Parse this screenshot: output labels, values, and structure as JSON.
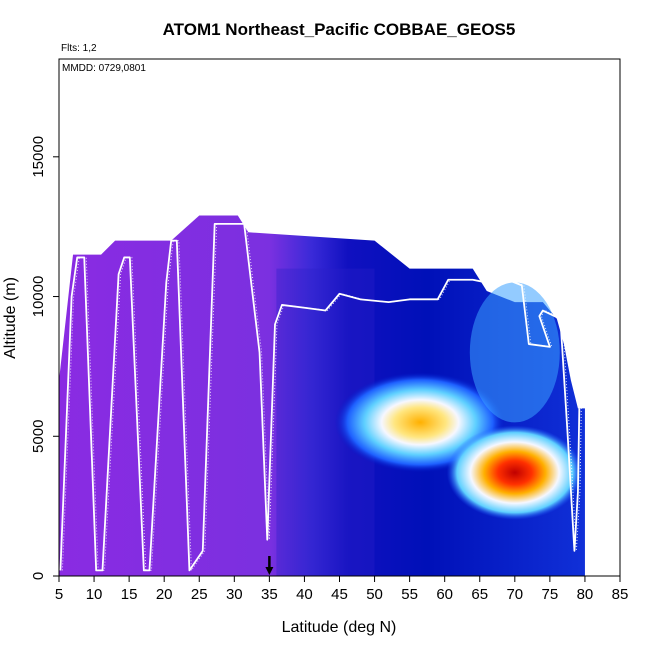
{
  "chart_data": {
    "type": "heatmap",
    "title": "ATOM1 Northeast_Pacific COBBAE_GEOS5",
    "annotations": [
      "Flts: 1,2",
      "MMDD: 0729,0801"
    ],
    "xlabel": "Latitude (deg N)",
    "ylabel": "Altitude (m)",
    "xlim": [
      5,
      85
    ],
    "ylim": [
      0,
      18500
    ],
    "x_ticks": [
      "5",
      "10",
      "15",
      "20",
      "25",
      "30",
      "35",
      "40",
      "45",
      "50",
      "55",
      "60",
      "65",
      "70",
      "75",
      "80",
      "85"
    ],
    "y_ticks": [
      "0",
      "5000",
      "10000",
      "15000"
    ],
    "marker": {
      "x": 35,
      "label": "arrow"
    },
    "heat_regions": [
      {
        "name": "plume-central",
        "x": [
          50,
          63
        ],
        "y": [
          4500,
          6500
        ],
        "level": 0.85
      },
      {
        "name": "plume-north",
        "x": [
          66,
          74
        ],
        "y": [
          2800,
          4600
        ],
        "level": 1.0
      }
    ],
    "flight_track": [
      [
        5.2,
        200
      ],
      [
        6.8,
        10000
      ],
      [
        7.6,
        11400
      ],
      [
        8.6,
        11400
      ],
      [
        10.3,
        200
      ],
      [
        11.2,
        200
      ],
      [
        13.5,
        10800
      ],
      [
        14.3,
        11400
      ],
      [
        15.1,
        11400
      ],
      [
        17.1,
        200
      ],
      [
        17.9,
        200
      ],
      [
        20.3,
        10500
      ],
      [
        21.0,
        12000
      ],
      [
        21.8,
        12000
      ],
      [
        23.6,
        200
      ],
      [
        25.5,
        900
      ],
      [
        27.2,
        12600
      ],
      [
        30.5,
        12600
      ],
      [
        31.4,
        12600
      ],
      [
        33.6,
        8000
      ],
      [
        34.7,
        1300
      ],
      [
        35.8,
        9000
      ],
      [
        36.8,
        9700
      ],
      [
        40,
        9600
      ],
      [
        43,
        9500
      ],
      [
        45,
        10100
      ],
      [
        48,
        9900
      ],
      [
        52,
        9800
      ],
      [
        55,
        9900
      ],
      [
        59,
        9900
      ],
      [
        60.5,
        10600
      ],
      [
        64,
        10600
      ],
      [
        66,
        10500
      ],
      [
        69,
        10600
      ],
      [
        71,
        10400
      ],
      [
        72,
        8300
      ],
      [
        75,
        8200
      ],
      [
        73.5,
        9300
      ],
      [
        74,
        9500
      ],
      [
        76.5,
        9200
      ],
      [
        77.5,
        5200
      ],
      [
        78.5,
        900
      ],
      [
        79,
        3000
      ],
      [
        79.2,
        6000
      ]
    ]
  },
  "colors": {
    "purple": "#8a2be2",
    "deep_blue": "#0000b0",
    "blue": "#1e3cff",
    "cyan": "#5fd0ff",
    "white": "#f6f7ff",
    "orange": "#ffb000",
    "red": "#d10000"
  }
}
